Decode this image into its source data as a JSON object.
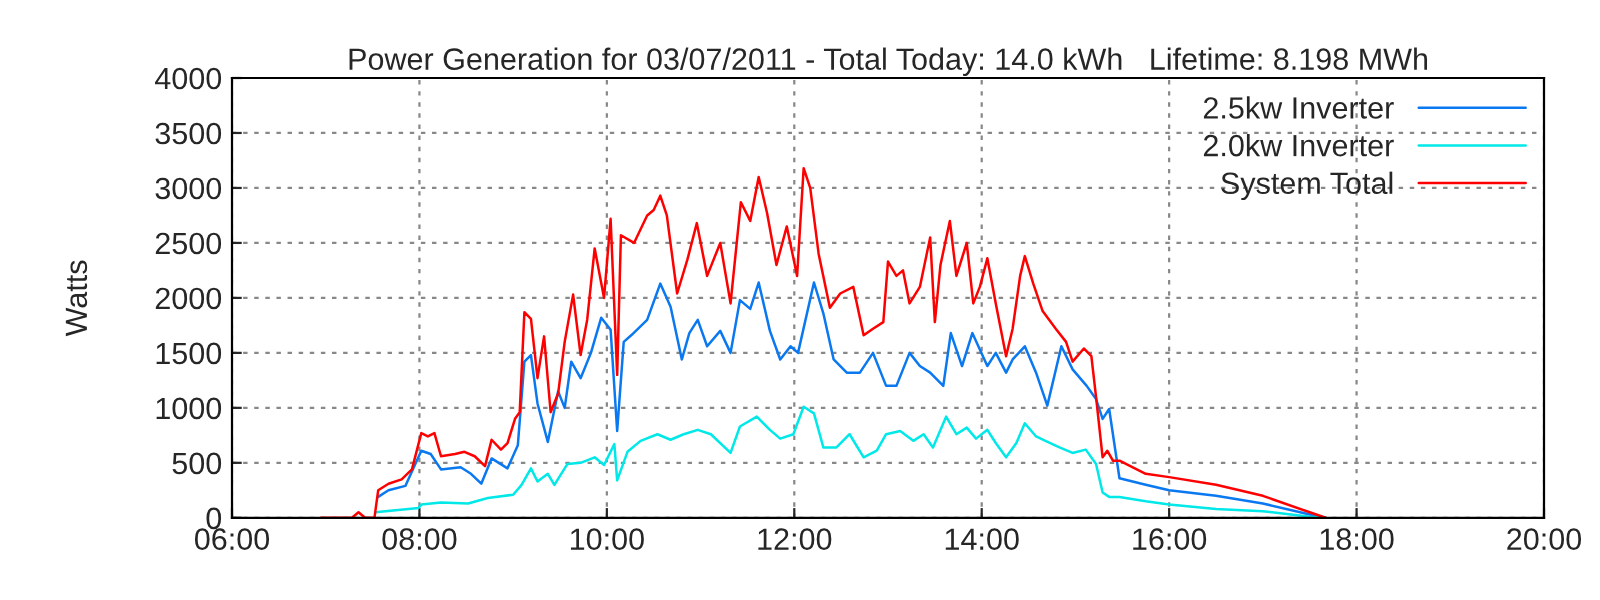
{
  "chart_data": {
    "type": "line",
    "title": "Power Generation for 03/07/2011 - Total Today: 14.0 kWh   Lifetime: 8.198 MWh",
    "ylabel": "Watts",
    "xlim": [
      6,
      20
    ],
    "ylim": [
      0,
      4000
    ],
    "xticks": [
      {
        "value": 6,
        "label": "06:00"
      },
      {
        "value": 8,
        "label": "08:00"
      },
      {
        "value": 10,
        "label": "10:00"
      },
      {
        "value": 12,
        "label": "12:00"
      },
      {
        "value": 14,
        "label": "14:00"
      },
      {
        "value": 16,
        "label": "16:00"
      },
      {
        "value": 18,
        "label": "18:00"
      },
      {
        "value": 20,
        "label": "20:00"
      }
    ],
    "yticks": [
      0,
      500,
      1000,
      1500,
      2000,
      2500,
      3000,
      3500,
      4000
    ],
    "grid": true,
    "legend": "top right",
    "line_style": "solid",
    "marker": "none",
    "series": [
      {
        "name": "2.5kw Inverter",
        "color": "#0a78f0",
        "x": [
          7.56,
          7.67,
          7.85,
          8.02,
          8.12,
          8.23,
          8.44,
          8.55,
          8.66,
          8.77,
          8.94,
          9.05,
          9.12,
          9.19,
          9.26,
          9.37,
          9.48,
          9.55,
          9.62,
          9.72,
          9.83,
          9.94,
          10.04,
          10.11,
          10.18,
          10.26,
          10.43,
          10.57,
          10.68,
          10.8,
          10.88,
          10.97,
          11.07,
          11.21,
          11.32,
          11.42,
          11.53,
          11.62,
          11.74,
          11.85,
          11.96,
          12.04,
          12.21,
          12.31,
          12.42,
          12.56,
          12.7,
          12.84,
          12.98,
          13.09,
          13.23,
          13.34,
          13.45,
          13.59,
          13.67,
          13.79,
          13.9,
          14.06,
          14.15,
          14.26,
          14.33,
          14.46,
          14.58,
          14.7,
          14.85,
          14.97,
          15.12,
          15.22,
          15.29,
          15.36,
          15.47,
          15.75,
          16.0,
          16.5,
          17.0,
          17.5,
          17.67
        ],
        "values": [
          190,
          250,
          290,
          610,
          580,
          440,
          460,
          400,
          310,
          540,
          450,
          660,
          1420,
          1480,
          1040,
          690,
          1150,
          1000,
          1420,
          1270,
          1500,
          1820,
          1710,
          790,
          1600,
          1660,
          1800,
          2130,
          1920,
          1440,
          1680,
          1800,
          1560,
          1700,
          1500,
          1980,
          1900,
          2140,
          1700,
          1440,
          1560,
          1500,
          2140,
          1860,
          1440,
          1320,
          1320,
          1500,
          1200,
          1200,
          1500,
          1380,
          1320,
          1200,
          1680,
          1380,
          1680,
          1380,
          1500,
          1320,
          1440,
          1560,
          1320,
          1020,
          1560,
          1350,
          1200,
          1080,
          900,
          990,
          360,
          300,
          250,
          200,
          130,
          30,
          0
        ]
      },
      {
        "name": "2.0kw Inverter",
        "color": "#00e8e8",
        "x": [
          7.53,
          7.99,
          8.02,
          8.23,
          8.52,
          8.73,
          9.0,
          9.09,
          9.19,
          9.26,
          9.37,
          9.44,
          9.58,
          9.72,
          9.87,
          9.97,
          10.08,
          10.11,
          10.22,
          10.36,
          10.54,
          10.68,
          10.82,
          10.97,
          11.11,
          11.32,
          11.42,
          11.6,
          11.74,
          11.85,
          11.99,
          12.1,
          12.21,
          12.31,
          12.45,
          12.59,
          12.74,
          12.88,
          12.98,
          13.13,
          13.27,
          13.38,
          13.48,
          13.62,
          13.73,
          13.84,
          13.94,
          14.06,
          14.15,
          14.26,
          14.37,
          14.46,
          14.58,
          14.68,
          14.83,
          14.97,
          15.11,
          15.22,
          15.29,
          15.36,
          15.47,
          15.75,
          16.0,
          16.5,
          17.0,
          17.5,
          17.67
        ],
        "values": [
          50,
          90,
          120,
          140,
          130,
          180,
          210,
          300,
          450,
          330,
          400,
          300,
          490,
          500,
          550,
          480,
          670,
          340,
          600,
          700,
          760,
          710,
          760,
          800,
          760,
          590,
          830,
          920,
          800,
          720,
          760,
          1010,
          950,
          640,
          640,
          760,
          550,
          610,
          760,
          790,
          700,
          760,
          640,
          920,
          760,
          820,
          720,
          800,
          680,
          550,
          680,
          860,
          740,
          700,
          640,
          590,
          620,
          490,
          230,
          190,
          190,
          150,
          120,
          80,
          60,
          10,
          0
        ]
      },
      {
        "name": "System Total",
        "color": "#ff0000",
        "x": [
          6.95,
          7.28,
          7.35,
          7.42,
          7.52,
          7.56,
          7.67,
          7.81,
          7.92,
          8.02,
          8.09,
          8.16,
          8.23,
          8.38,
          8.48,
          8.59,
          8.7,
          8.77,
          8.87,
          8.94,
          9.02,
          9.07,
          9.12,
          9.19,
          9.26,
          9.33,
          9.4,
          9.48,
          9.55,
          9.64,
          9.72,
          9.79,
          9.87,
          9.97,
          10.04,
          10.11,
          10.15,
          10.29,
          10.43,
          10.5,
          10.57,
          10.64,
          10.75,
          10.86,
          10.96,
          11.07,
          11.21,
          11.32,
          11.43,
          11.53,
          11.62,
          11.71,
          11.81,
          11.92,
          12.03,
          12.1,
          12.17,
          12.26,
          12.38,
          12.49,
          12.63,
          12.74,
          12.84,
          12.95,
          13.0,
          13.09,
          13.16,
          13.23,
          13.34,
          13.45,
          13.5,
          13.56,
          13.66,
          13.73,
          13.84,
          13.91,
          13.98,
          14.06,
          14.15,
          14.26,
          14.33,
          14.41,
          14.46,
          14.55,
          14.65,
          14.79,
          14.9,
          14.97,
          15.09,
          15.17,
          15.22,
          15.29,
          15.34,
          15.4,
          15.47,
          15.75,
          16.0,
          16.5,
          17.0,
          17.5,
          17.67
        ],
        "values": [
          0,
          0,
          50,
          0,
          0,
          250,
          310,
          350,
          440,
          770,
          740,
          770,
          560,
          580,
          600,
          560,
          470,
          710,
          620,
          680,
          900,
          960,
          1870,
          1810,
          1270,
          1650,
          960,
          1130,
          1600,
          2030,
          1480,
          1800,
          2450,
          2000,
          2720,
          1300,
          2570,
          2500,
          2750,
          2800,
          2930,
          2750,
          2040,
          2350,
          2680,
          2200,
          2500,
          1950,
          2870,
          2700,
          3100,
          2770,
          2300,
          2650,
          2200,
          3180,
          3000,
          2400,
          1910,
          2040,
          2100,
          1660,
          1720,
          1780,
          2330,
          2200,
          2250,
          1950,
          2100,
          2550,
          1780,
          2300,
          2700,
          2200,
          2500,
          1950,
          2100,
          2360,
          1950,
          1470,
          1720,
          2200,
          2380,
          2130,
          1880,
          1720,
          1600,
          1420,
          1540,
          1470,
          1100,
          550,
          610,
          520,
          520,
          400,
          370,
          300,
          200,
          50,
          0
        ]
      }
    ]
  }
}
